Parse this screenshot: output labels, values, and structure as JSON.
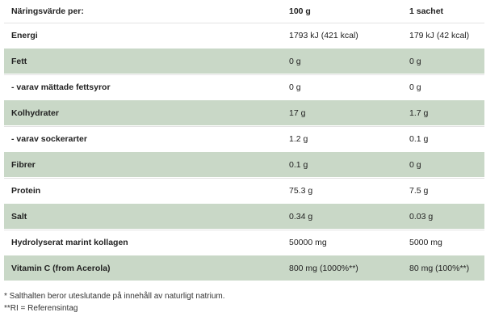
{
  "header": {
    "label": "Näringsvärde per:",
    "col_100g": "100 g",
    "col_sachet": "1 sachet"
  },
  "rows": [
    {
      "name": "Energi",
      "per100": "1793 kJ (421 kcal)",
      "sachet": "179 kJ (42 kcal)"
    },
    {
      "name": "Fett",
      "per100": "0 g",
      "sachet": "0 g"
    },
    {
      "name": "- varav mättade fettsyror",
      "per100": "0 g",
      "sachet": "0 g"
    },
    {
      "name": "Kolhydrater",
      "per100": "17 g",
      "sachet": "1.7 g"
    },
    {
      "name": "- varav sockerarter",
      "per100": "1.2 g",
      "sachet": "0.1 g"
    },
    {
      "name": "Fibrer",
      "per100": "0.1 g",
      "sachet": "0 g"
    },
    {
      "name": "Protein",
      "per100": "75.3 g",
      "sachet": "7.5 g"
    },
    {
      "name": "Salt",
      "per100": "0.34 g",
      "sachet": "0.03 g"
    },
    {
      "name": "Hydrolyserat marint kollagen",
      "per100": "50000 mg",
      "sachet": "5000 mg"
    },
    {
      "name": "Vitamin C (from Acerola)",
      "per100": "800 mg (1000%**)",
      "sachet": "80 mg (100%**)"
    }
  ],
  "notes": {
    "salt": "* Salthalten beror uteslutande på innehåll av naturligt natrium.",
    "ri": "**RI = Referensintag"
  },
  "colors": {
    "band": "#c9d8c7",
    "white": "#ffffff"
  }
}
